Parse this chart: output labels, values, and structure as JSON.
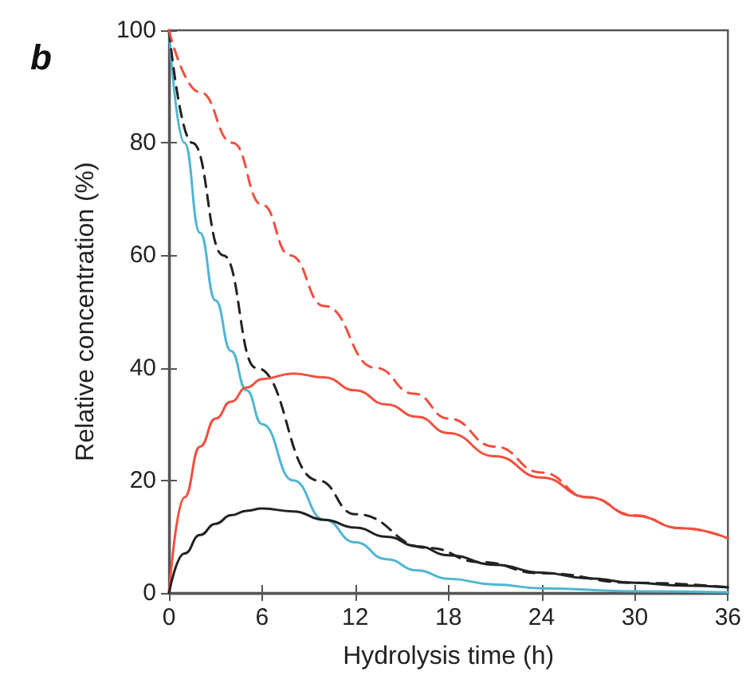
{
  "chart_data": {
    "type": "line",
    "title": "b",
    "xlabel": "Hydrolysis time (h)",
    "ylabel": "Relative concentration (%)",
    "xlim": [
      0,
      36
    ],
    "xticks": [
      0,
      6,
      12,
      18,
      24,
      30,
      36
    ],
    "ylim": [
      0,
      100
    ],
    "yticks": [
      0,
      20,
      40,
      60,
      80,
      100
    ],
    "grid": false,
    "marker": "none",
    "series": [
      {
        "color": "#4fb6d2",
        "line_style": "solid",
        "x": [
          0,
          1,
          2,
          3,
          4,
          5,
          6,
          8,
          10,
          12,
          14,
          16,
          18,
          21,
          24,
          30,
          36
        ],
        "values": [
          100,
          80,
          64,
          52,
          43,
          36,
          30,
          20,
          13,
          9,
          6,
          4,
          2.5,
          1.5,
          0.8,
          0.3,
          0.1
        ]
      },
      {
        "color": "#222222",
        "line_style": "dashed",
        "x": [
          0,
          1.5,
          3.5,
          5.6,
          9.6,
          12,
          16.7,
          20,
          24,
          30,
          36
        ],
        "values": [
          100,
          80,
          60,
          40,
          20,
          14,
          8,
          5.5,
          3.5,
          1.8,
          1
        ]
      },
      {
        "color": "#f05040",
        "line_style": "dashed",
        "x": [
          0,
          2,
          4.1,
          6,
          7.8,
          10,
          13.3,
          15.8,
          18,
          21,
          24,
          27,
          30,
          33,
          36
        ],
        "values": [
          100,
          89,
          80,
          69,
          60,
          51,
          40,
          35.4,
          31,
          26,
          21.4,
          17,
          13.8,
          11.5,
          9.7
        ]
      },
      {
        "color": "#f05040",
        "line_style": "solid",
        "x": [
          0,
          1,
          2,
          3,
          4,
          5,
          6,
          8,
          10,
          12,
          14,
          16,
          18,
          21,
          24,
          27,
          30,
          33,
          36
        ],
        "values": [
          0,
          17,
          26,
          31,
          34,
          36.5,
          38,
          39,
          38.3,
          36,
          33.5,
          31.3,
          28.4,
          24.3,
          20.5,
          17,
          13.7,
          11.5,
          9.7
        ]
      },
      {
        "color": "#222222",
        "line_style": "solid",
        "x": [
          0,
          1,
          2,
          3,
          4,
          5,
          6,
          8,
          10,
          12,
          14,
          16,
          18,
          21,
          24,
          27,
          30,
          33,
          36
        ],
        "values": [
          0,
          7,
          10.3,
          12.3,
          13.8,
          14.6,
          15,
          14.5,
          13,
          11.6,
          10,
          8.3,
          6.7,
          5,
          3.6,
          2.6,
          1.8,
          1.3,
          1
        ]
      }
    ]
  }
}
